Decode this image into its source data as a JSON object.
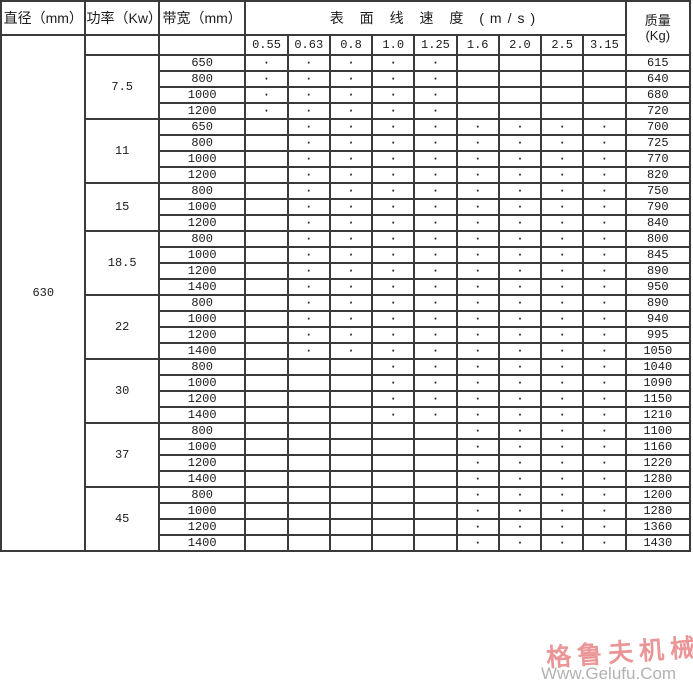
{
  "header": {
    "col_diameter": "直径（mm）",
    "col_power": "功率（Kw）",
    "col_bandwidth": "带宽（mm）",
    "col_speed": "表 面 线 速 度 (m/s)",
    "col_mass_line1": "质量",
    "col_mass_line2": "(Kg)",
    "speed_ticks": [
      "0.55",
      "0.63",
      "0.8",
      "1.0",
      "1.25",
      "1.6",
      "2.0",
      "2.5",
      "3.15"
    ]
  },
  "diameter": "630",
  "dot_glyph": "·",
  "groups": [
    {
      "power": "7.5",
      "rows": [
        {
          "bandwidth": "650",
          "dots": [
            1,
            1,
            1,
            1,
            1,
            0,
            0,
            0,
            0
          ],
          "mass": "615"
        },
        {
          "bandwidth": "800",
          "dots": [
            1,
            1,
            1,
            1,
            1,
            0,
            0,
            0,
            0
          ],
          "mass": "640"
        },
        {
          "bandwidth": "1000",
          "dots": [
            1,
            1,
            1,
            1,
            1,
            0,
            0,
            0,
            0
          ],
          "mass": "680"
        },
        {
          "bandwidth": "1200",
          "dots": [
            1,
            1,
            1,
            1,
            1,
            0,
            0,
            0,
            0
          ],
          "mass": "720"
        }
      ]
    },
    {
      "power": "11",
      "rows": [
        {
          "bandwidth": "650",
          "dots": [
            0,
            1,
            1,
            1,
            1,
            1,
            1,
            1,
            1
          ],
          "mass": "700"
        },
        {
          "bandwidth": "800",
          "dots": [
            0,
            1,
            1,
            1,
            1,
            1,
            1,
            1,
            1
          ],
          "mass": "725"
        },
        {
          "bandwidth": "1000",
          "dots": [
            0,
            1,
            1,
            1,
            1,
            1,
            1,
            1,
            1
          ],
          "mass": "770"
        },
        {
          "bandwidth": "1200",
          "dots": [
            0,
            1,
            1,
            1,
            1,
            1,
            1,
            1,
            1
          ],
          "mass": "820"
        }
      ]
    },
    {
      "power": "15",
      "rows": [
        {
          "bandwidth": "800",
          "dots": [
            0,
            1,
            1,
            1,
            1,
            1,
            1,
            1,
            1
          ],
          "mass": "750"
        },
        {
          "bandwidth": "1000",
          "dots": [
            0,
            1,
            1,
            1,
            1,
            1,
            1,
            1,
            1
          ],
          "mass": "790"
        },
        {
          "bandwidth": "1200",
          "dots": [
            0,
            1,
            1,
            1,
            1,
            1,
            1,
            1,
            1
          ],
          "mass": "840"
        }
      ]
    },
    {
      "power": "18.5",
      "rows": [
        {
          "bandwidth": "800",
          "dots": [
            0,
            1,
            1,
            1,
            1,
            1,
            1,
            1,
            1
          ],
          "mass": "800"
        },
        {
          "bandwidth": "1000",
          "dots": [
            0,
            1,
            1,
            1,
            1,
            1,
            1,
            1,
            1
          ],
          "mass": "845"
        },
        {
          "bandwidth": "1200",
          "dots": [
            0,
            1,
            1,
            1,
            1,
            1,
            1,
            1,
            1
          ],
          "mass": "890"
        },
        {
          "bandwidth": "1400",
          "dots": [
            0,
            1,
            1,
            1,
            1,
            1,
            1,
            1,
            1
          ],
          "mass": "950"
        }
      ]
    },
    {
      "power": "22",
      "rows": [
        {
          "bandwidth": "800",
          "dots": [
            0,
            1,
            1,
            1,
            1,
            1,
            1,
            1,
            1
          ],
          "mass": "890"
        },
        {
          "bandwidth": "1000",
          "dots": [
            0,
            1,
            1,
            1,
            1,
            1,
            1,
            1,
            1
          ],
          "mass": "940"
        },
        {
          "bandwidth": "1200",
          "dots": [
            0,
            1,
            1,
            1,
            1,
            1,
            1,
            1,
            1
          ],
          "mass": "995"
        },
        {
          "bandwidth": "1400",
          "dots": [
            0,
            1,
            1,
            1,
            1,
            1,
            1,
            1,
            1
          ],
          "mass": "1050"
        }
      ]
    },
    {
      "power": "30",
      "rows": [
        {
          "bandwidth": "800",
          "dots": [
            0,
            0,
            0,
            1,
            1,
            1,
            1,
            1,
            1
          ],
          "mass": "1040"
        },
        {
          "bandwidth": "1000",
          "dots": [
            0,
            0,
            0,
            1,
            1,
            1,
            1,
            1,
            1
          ],
          "mass": "1090"
        },
        {
          "bandwidth": "1200",
          "dots": [
            0,
            0,
            0,
            1,
            1,
            1,
            1,
            1,
            1
          ],
          "mass": "1150"
        },
        {
          "bandwidth": "1400",
          "dots": [
            0,
            0,
            0,
            1,
            1,
            1,
            1,
            1,
            1
          ],
          "mass": "1210"
        }
      ]
    },
    {
      "power": "37",
      "rows": [
        {
          "bandwidth": "800",
          "dots": [
            0,
            0,
            0,
            0,
            0,
            1,
            1,
            1,
            1
          ],
          "mass": "1100"
        },
        {
          "bandwidth": "1000",
          "dots": [
            0,
            0,
            0,
            0,
            0,
            1,
            1,
            1,
            1
          ],
          "mass": "1160"
        },
        {
          "bandwidth": "1200",
          "dots": [
            0,
            0,
            0,
            0,
            0,
            1,
            1,
            1,
            1
          ],
          "mass": "1220"
        },
        {
          "bandwidth": "1400",
          "dots": [
            0,
            0,
            0,
            0,
            0,
            1,
            1,
            1,
            1
          ],
          "mass": "1280"
        }
      ]
    },
    {
      "power": "45",
      "rows": [
        {
          "bandwidth": "800",
          "dots": [
            0,
            0,
            0,
            0,
            0,
            1,
            1,
            1,
            1
          ],
          "mass": "1200"
        },
        {
          "bandwidth": "1000",
          "dots": [
            0,
            0,
            0,
            0,
            0,
            1,
            1,
            1,
            1
          ],
          "mass": "1280"
        },
        {
          "bandwidth": "1200",
          "dots": [
            0,
            0,
            0,
            0,
            0,
            1,
            1,
            1,
            1
          ],
          "mass": "1360"
        },
        {
          "bandwidth": "1400",
          "dots": [
            0,
            0,
            0,
            0,
            0,
            1,
            1,
            1,
            1
          ],
          "mass": "1430"
        }
      ]
    }
  ],
  "watermark": {
    "cn": "格鲁夫机械",
    "url": "Www.Gelufu.Com",
    "red_color": "rgba(223,85,85,0.62)",
    "gray_color": "#b2b2b2"
  },
  "colors": {
    "border": "#3a3a3a",
    "text": "#1c1c1c",
    "background": "#ffffff"
  }
}
